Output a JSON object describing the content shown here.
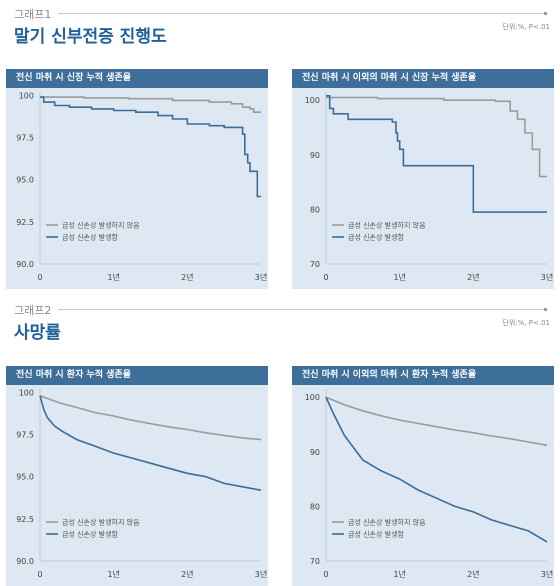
{
  "section1": {
    "label": "그래프1",
    "title": "말기 신부전증 진행도",
    "unit_note": "단위:%, P<.01"
  },
  "section2": {
    "label": "그래프2",
    "title": "사망률",
    "unit_note": "단위:%, P<.01"
  },
  "colors": {
    "header": "#3d6f9a",
    "panel_bg": "#dde8f2",
    "gray_line": "#9b9b9b",
    "blue_line": "#3b6e99",
    "title_blue": "#1f5f9a"
  },
  "chart_data": [
    {
      "type": "line",
      "title": "전신 마취 시 신장 누적 생존율",
      "x_ticks": [
        "0",
        "1년",
        "2년",
        "3년"
      ],
      "y_ticks": [
        "100",
        "97.5",
        "95.0",
        "92.5",
        "90.0"
      ],
      "ylim": [
        90,
        100.2
      ],
      "xlim": [
        0,
        3
      ],
      "legend_position": "bottom-left",
      "series": [
        {
          "name": "급성 신손상 발생하지 않음",
          "color": "#9b9b9b",
          "step": true,
          "x": [
            0,
            0.6,
            1.2,
            1.8,
            2.3,
            2.6,
            2.75,
            2.85,
            2.9,
            3.0
          ],
          "y": [
            99.9,
            99.85,
            99.8,
            99.7,
            99.6,
            99.5,
            99.3,
            99.2,
            99.0,
            99.0
          ]
        },
        {
          "name": "급성 신손상 발생함",
          "color": "#3b6e99",
          "step": true,
          "x": [
            0,
            0.05,
            0.2,
            0.4,
            0.7,
            1.0,
            1.3,
            1.6,
            1.8,
            2.0,
            2.3,
            2.5,
            2.75,
            2.78,
            2.82,
            2.85,
            2.9,
            2.95,
            3.0
          ],
          "y": [
            99.9,
            99.6,
            99.4,
            99.3,
            99.2,
            99.1,
            99.0,
            98.8,
            98.6,
            98.3,
            98.2,
            98.1,
            97.7,
            96.5,
            96.0,
            95.5,
            95.5,
            94.0,
            94.0
          ]
        }
      ]
    },
    {
      "type": "line",
      "title": "전신 마취 시 이외의 마취 시 신장 누적 생존율",
      "x_ticks": [
        "0",
        "1년",
        "2년",
        "3년"
      ],
      "y_ticks": [
        "100",
        "90",
        "80",
        "70"
      ],
      "ylim": [
        70,
        101.5
      ],
      "xlim": [
        0,
        3
      ],
      "legend_position": "bottom-left",
      "series": [
        {
          "name": "급성 신손상 발생하지 않음",
          "color": "#9b9b9b",
          "step": true,
          "x": [
            0,
            0.7,
            1.6,
            2.3,
            2.5,
            2.6,
            2.7,
            2.8,
            2.9,
            3.0
          ],
          "y": [
            100.5,
            100.3,
            100.0,
            99.8,
            98.0,
            96.5,
            94.0,
            91.0,
            86.0,
            86.0
          ]
        },
        {
          "name": "급성 신손상 발생함",
          "color": "#3b6e99",
          "step": true,
          "x": [
            0,
            0.05,
            0.1,
            0.3,
            0.9,
            0.95,
            0.97,
            1.0,
            1.05,
            1.9,
            2.0,
            3.0
          ],
          "y": [
            100.8,
            98.5,
            97.5,
            96.5,
            96.0,
            94.0,
            92.5,
            91.0,
            88.0,
            88.0,
            79.5,
            79.5
          ]
        }
      ]
    },
    {
      "type": "line",
      "title": "전신 마취 시 환자 누적 생존율",
      "x_ticks": [
        "0",
        "1년",
        "2년",
        "3년"
      ],
      "y_ticks": [
        "100",
        "97.5",
        "95.0",
        "92.5",
        "90.0"
      ],
      "ylim": [
        90,
        100.2
      ],
      "xlim": [
        0,
        3
      ],
      "legend_position": "bottom-left",
      "series": [
        {
          "name": "급성 신손상 발생하지 않음",
          "color": "#9b9b9b",
          "step": false,
          "x": [
            0,
            0.25,
            0.5,
            0.75,
            1.0,
            1.25,
            1.5,
            1.75,
            2.0,
            2.25,
            2.5,
            2.75,
            3.0
          ],
          "y": [
            99.8,
            99.4,
            99.1,
            98.8,
            98.6,
            98.35,
            98.15,
            97.95,
            97.8,
            97.6,
            97.45,
            97.3,
            97.2
          ]
        },
        {
          "name": "급성 신손상 발생함",
          "color": "#3b6e99",
          "step": false,
          "x": [
            0,
            0.05,
            0.1,
            0.2,
            0.3,
            0.5,
            0.75,
            1.0,
            1.25,
            1.5,
            1.75,
            2.0,
            2.25,
            2.5,
            2.75,
            3.0
          ],
          "y": [
            99.8,
            99.0,
            98.5,
            98.0,
            97.7,
            97.2,
            96.8,
            96.4,
            96.1,
            95.8,
            95.5,
            95.2,
            95.0,
            94.6,
            94.4,
            94.2
          ]
        }
      ]
    },
    {
      "type": "line",
      "title": "전신 마취 시 이외의 마취 시 환자 누적 생존율",
      "x_ticks": [
        "0",
        "1년",
        "2년",
        "3년"
      ],
      "y_ticks": [
        "100",
        "90",
        "80",
        "70"
      ],
      "ylim": [
        70,
        101.5
      ],
      "xlim": [
        0,
        3
      ],
      "legend_position": "bottom-left",
      "series": [
        {
          "name": "급성 신손상 발생하지 않음",
          "color": "#9b9b9b",
          "step": false,
          "x": [
            0,
            0.25,
            0.5,
            0.75,
            1.0,
            1.25,
            1.5,
            1.75,
            2.0,
            2.25,
            2.5,
            2.75,
            3.0
          ],
          "y": [
            100,
            98.6,
            97.5,
            96.6,
            95.8,
            95.2,
            94.6,
            94.0,
            93.5,
            92.9,
            92.4,
            91.8,
            91.2
          ]
        },
        {
          "name": "급성 신손상 발생함",
          "color": "#3b6e99",
          "step": false,
          "x": [
            0,
            0.1,
            0.25,
            0.5,
            0.75,
            1.0,
            1.25,
            1.5,
            1.75,
            2.0,
            2.25,
            2.5,
            2.75,
            3.0
          ],
          "y": [
            100,
            97.0,
            93.0,
            88.5,
            86.5,
            85.0,
            83.0,
            81.5,
            80.0,
            79.0,
            77.5,
            76.5,
            75.5,
            73.5
          ]
        }
      ]
    }
  ]
}
